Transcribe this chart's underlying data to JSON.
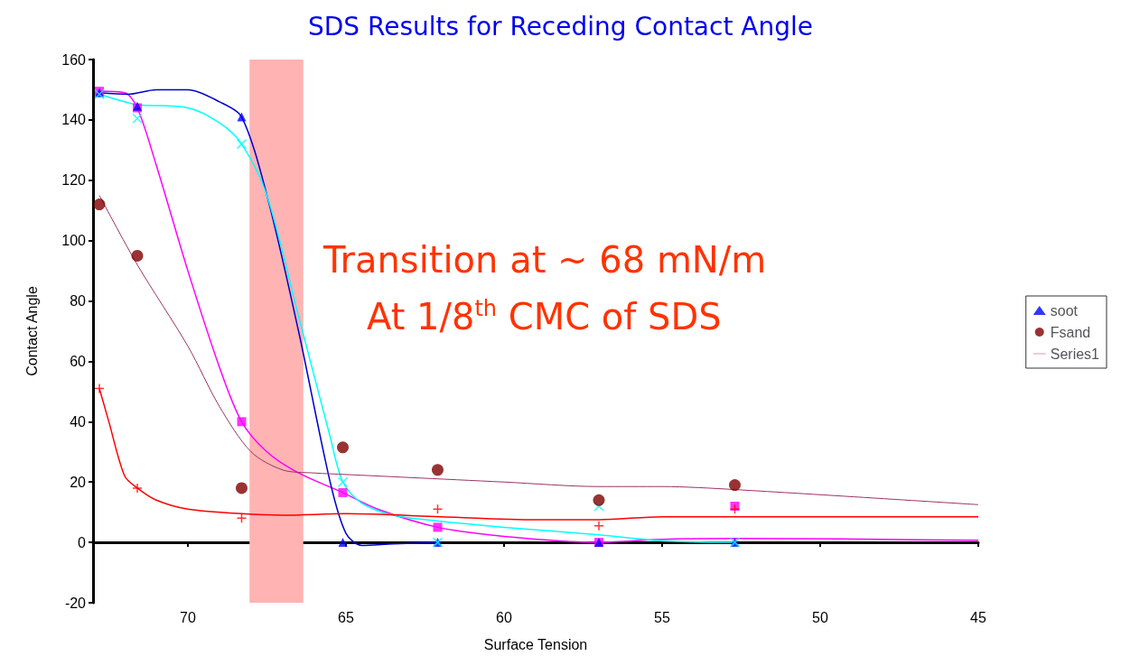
{
  "chart_data": {
    "type": "scatter",
    "title": "SDS Results for Receding Contact Angle",
    "xlabel": "Surface Tension",
    "ylabel": "Contact Angle",
    "xlim": [
      73,
      45
    ],
    "xticks": [
      70,
      65,
      60,
      55,
      50,
      45
    ],
    "ylim": [
      -20,
      160
    ],
    "yticks": [
      -20,
      0,
      20,
      40,
      60,
      80,
      100,
      120,
      140,
      160
    ],
    "legend": "right",
    "annotations": [
      "Transition at ~ 68 mN/m",
      "At 1/8$^{th}$ CMC of SDS"
    ],
    "bands": [
      {
        "axis": "x",
        "from": 68.05,
        "to": 66.35,
        "color": "#ffb3b3"
      }
    ],
    "series": [
      {
        "color": "#ff00ff",
        "marker": "square",
        "x": [
          72.8,
          71.6,
          68.3,
          65.1,
          62.1,
          57.0,
          52.7
        ],
        "values": [
          149.5,
          144,
          40,
          16.5,
          5,
          0,
          12
        ]
      },
      {
        "name": "soot",
        "color": "#0000ff",
        "marker": "triangle",
        "x": [
          72.8,
          71.6,
          68.3,
          65.1,
          62.1,
          57.0,
          52.7
        ],
        "values": [
          149,
          144.5,
          141,
          0,
          0,
          0,
          0
        ]
      },
      {
        "color": "#00ffff",
        "marker": "cross",
        "x": [
          72.8,
          71.6,
          68.3,
          65.1,
          62.1,
          57.0,
          52.7
        ],
        "values": [
          148.5,
          140.5,
          132,
          20,
          0,
          12,
          0
        ]
      },
      {
        "name": "Fsand",
        "color": "#800000",
        "marker": "circle",
        "x": [
          72.8,
          71.6,
          68.3,
          65.1,
          62.1,
          57.0,
          52.7
        ],
        "values": [
          112,
          95,
          18,
          31.5,
          24,
          14,
          19
        ]
      },
      {
        "color": "#ff0000",
        "marker": "plus",
        "x": [
          72.8,
          71.6,
          68.3,
          62.1,
          57.0,
          52.7
        ],
        "values": [
          51,
          18,
          8,
          11,
          5.5,
          11
        ]
      },
      {
        "type": "line",
        "color": "#ff00ff",
        "marker": "none",
        "x": [
          72.8,
          72,
          71.6,
          71,
          70,
          69,
          68.3,
          67.5,
          66.5,
          65.1,
          64,
          62.1,
          60,
          57,
          55,
          52.7,
          45
        ],
        "values": [
          149.5,
          149,
          144,
          125,
          90,
          58,
          40,
          30,
          23,
          16.5,
          11,
          5,
          2,
          0,
          1,
          1.3,
          0.7
        ]
      },
      {
        "type": "line",
        "color": "#0000cc",
        "marker": "none",
        "x": [
          72.8,
          71.9,
          71,
          70,
          69,
          68.3,
          67.5,
          66.5,
          65.5,
          65,
          64.5,
          63.5,
          62
        ],
        "values": [
          149,
          148.5,
          150,
          150,
          146,
          141,
          115,
          70,
          20,
          3,
          -1,
          -0.5,
          0
        ]
      },
      {
        "type": "line",
        "color": "#00ffff",
        "marker": "none",
        "x": [
          72.8,
          72,
          71.6,
          70,
          69,
          68.3,
          67.5,
          66.5,
          65.5,
          65.1,
          64.5,
          63.5,
          62,
          60,
          57,
          55,
          52.7
        ],
        "values": [
          148.5,
          146,
          145,
          144,
          139,
          132,
          115,
          75,
          35,
          20,
          13,
          9,
          7,
          5,
          2.5,
          0.5,
          0
        ]
      },
      {
        "type": "line",
        "color": "#ff0000",
        "marker": "none",
        "x": [
          72.8,
          72.5,
          72,
          71.6,
          71,
          70,
          68.3,
          67,
          65,
          62,
          59,
          57,
          55,
          52.7,
          45
        ],
        "values": [
          51,
          40,
          22,
          18,
          14,
          11,
          9.5,
          9,
          9.5,
          8.5,
          7.5,
          7.5,
          8.5,
          8.5,
          8.5
        ]
      },
      {
        "type": "line",
        "name": "Series1",
        "color": "#993366",
        "marker": "none",
        "x": [
          72.8,
          71.6,
          70,
          69,
          68,
          67,
          66,
          65,
          63,
          60,
          57,
          55,
          52.7,
          45
        ],
        "values": [
          115,
          92,
          65,
          45,
          30,
          24,
          23,
          22.5,
          21.5,
          20,
          18.5,
          18.5,
          17.5,
          12.5
        ]
      }
    ]
  }
}
